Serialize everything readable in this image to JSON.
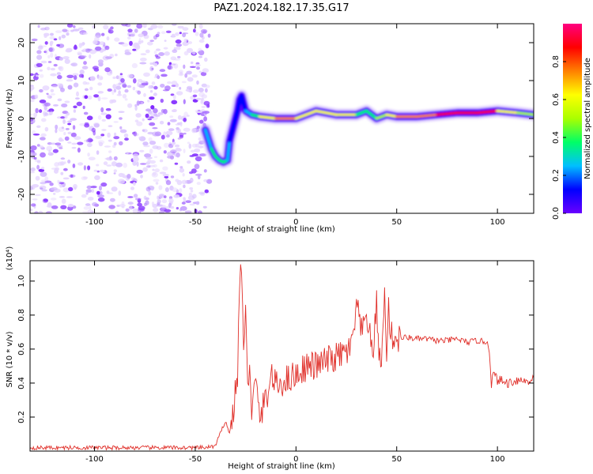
{
  "figure": {
    "title": "PAZ1.2024.182.17.35.G17"
  },
  "chart_data": [
    {
      "type": "heatmap",
      "xlabel": "Height of straight line (km)",
      "ylabel": "Frequency (Hz)",
      "xlim": [
        -132,
        118
      ],
      "ylim": [
        -25,
        25
      ],
      "xticks": [
        -100,
        -50,
        0,
        50,
        100
      ],
      "yticks": [
        -20,
        -10,
        0,
        10,
        20
      ],
      "colorbar": {
        "label": "Normalized spectral amplitude",
        "range": [
          0,
          1
        ],
        "ticks": [
          0.0,
          0.2,
          0.4,
          0.6,
          0.8
        ],
        "colormap": [
          "#6a00ff",
          "#0000ff",
          "#00bfff",
          "#00ff66",
          "#aaff00",
          "#ffff00",
          "#ff8000",
          "#ff0000",
          "#ff0080"
        ]
      },
      "noise_region_x": [
        -132,
        -43
      ],
      "trace": {
        "x": [
          -45,
          -42,
          -40,
          -38,
          -36,
          -34,
          -33,
          -31,
          -29,
          -28,
          -27,
          -25,
          -22,
          -18,
          -10,
          0,
          5,
          10,
          20,
          30,
          35,
          40,
          45,
          50,
          60,
          70,
          80,
          90,
          100,
          110,
          118
        ],
        "frequency_hz": [
          -3,
          -8,
          -10,
          -11,
          -11.5,
          -11,
          -6,
          -2,
          2,
          5,
          6,
          2,
          1,
          0.5,
          0,
          0,
          1,
          2,
          1,
          1,
          2,
          0,
          1,
          0.5,
          0.5,
          1,
          1.5,
          1.5,
          2,
          1.5,
          1
        ],
        "amplitude": [
          0.1,
          0.3,
          0.35,
          0.4,
          0.45,
          0.3,
          0.2,
          0.15,
          0.1,
          0.1,
          0.1,
          0.15,
          0.25,
          0.55,
          0.8,
          0.6,
          0.7,
          0.5,
          0.85,
          0.5,
          0.2,
          0.6,
          0.5,
          0.8,
          0.7,
          0.75,
          0.9,
          0.95,
          0.7,
          0.6,
          0.5
        ]
      }
    },
    {
      "type": "line",
      "xlabel": "Height of straight line (km)",
      "ylabel": "SNR (10 * v/v)",
      "yscale_label": "(x10⁴)",
      "xlim": [
        -132,
        118
      ],
      "ylim": [
        0,
        1.12
      ],
      "xticks": [
        -100,
        -50,
        0,
        50,
        100
      ],
      "yticks": [
        0.2,
        0.4,
        0.6,
        0.8,
        1.0
      ],
      "series": [
        {
          "color": "#e0302a",
          "x": [
            -132,
            -120,
            -100,
            -80,
            -60,
            -45,
            -40,
            -37,
            -35,
            -33,
            -31,
            -29,
            -28,
            -27,
            -26,
            -25,
            -24,
            -23,
            -22,
            -20,
            -18,
            -15,
            -12,
            -10,
            -5,
            0,
            5,
            10,
            15,
            20,
            25,
            28,
            30,
            33,
            35,
            38,
            40,
            42,
            44,
            45,
            46,
            47,
            48,
            50,
            55,
            60,
            65,
            70,
            75,
            80,
            85,
            90,
            95,
            96,
            97,
            98,
            100,
            105,
            110,
            115,
            118
          ],
          "y": [
            0.02,
            0.02,
            0.02,
            0.02,
            0.02,
            0.02,
            0.03,
            0.12,
            0.18,
            0.1,
            0.25,
            0.45,
            0.95,
            1.12,
            0.6,
            0.8,
            0.35,
            0.55,
            0.25,
            0.4,
            0.2,
            0.3,
            0.45,
            0.38,
            0.42,
            0.45,
            0.5,
            0.5,
            0.53,
            0.55,
            0.58,
            0.62,
            0.85,
            0.68,
            0.82,
            0.55,
            0.86,
            0.45,
            0.9,
            0.6,
            0.85,
            0.68,
            0.67,
            0.66,
            0.67,
            0.66,
            0.66,
            0.65,
            0.65,
            0.66,
            0.64,
            0.65,
            0.64,
            0.6,
            0.4,
            0.45,
            0.42,
            0.4,
            0.42,
            0.41,
            0.43
          ]
        }
      ]
    }
  ]
}
